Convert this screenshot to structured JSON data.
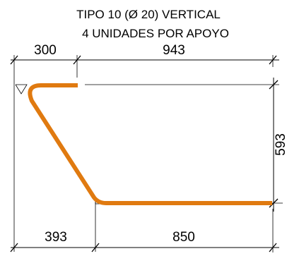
{
  "title": {
    "line1": "TIPO 10 (Ø 20) VERTICAL",
    "line2": "4 UNIDADES POR APOYO"
  },
  "dimensions": {
    "top_left": "300",
    "top_right": "943",
    "right_vertical": "593",
    "bottom_left": "393",
    "bottom_right": "850"
  },
  "colors": {
    "bar": "#e07a10",
    "line": "#000000",
    "background": "#ffffff"
  }
}
